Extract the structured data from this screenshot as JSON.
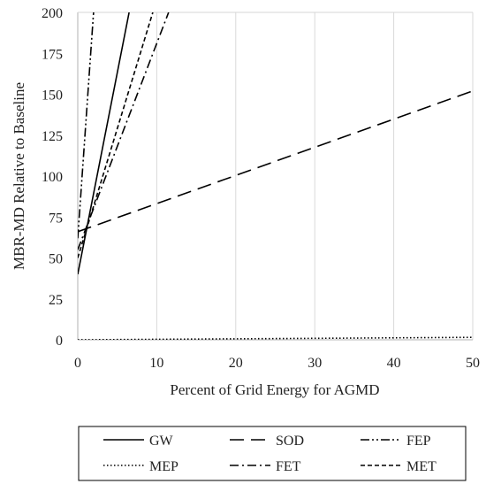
{
  "chart_data": {
    "type": "line",
    "title": "",
    "xlabel": "Percent of Grid Energy for AGMD",
    "ylabel": "MBR-MD Relative to Baseline",
    "xlim": [
      0,
      50
    ],
    "ylim": [
      0,
      200
    ],
    "xticks": [
      0,
      10,
      20,
      30,
      40,
      50
    ],
    "yticks": [
      0,
      25,
      50,
      75,
      100,
      125,
      150,
      175,
      200
    ],
    "grid": "vertical",
    "legend_position": "bottom",
    "series": [
      {
        "name": "GW",
        "style": "solid",
        "points": [
          [
            0,
            40
          ],
          [
            6.5,
            200
          ]
        ]
      },
      {
        "name": "SOD",
        "style": "longdash",
        "points": [
          [
            0,
            66
          ],
          [
            50,
            152
          ]
        ]
      },
      {
        "name": "FEP",
        "style": "dashdotdot",
        "points": [
          [
            0,
            62
          ],
          [
            2,
            200
          ]
        ]
      },
      {
        "name": "MEP",
        "style": "dotted",
        "points": [
          [
            0,
            0
          ],
          [
            50,
            1.5
          ]
        ]
      },
      {
        "name": "FET",
        "style": "dashdot",
        "points": [
          [
            0,
            55
          ],
          [
            11.5,
            200
          ]
        ]
      },
      {
        "name": "MET",
        "style": "shortdash",
        "points": [
          [
            0,
            50
          ],
          [
            9.5,
            200
          ]
        ]
      }
    ]
  }
}
